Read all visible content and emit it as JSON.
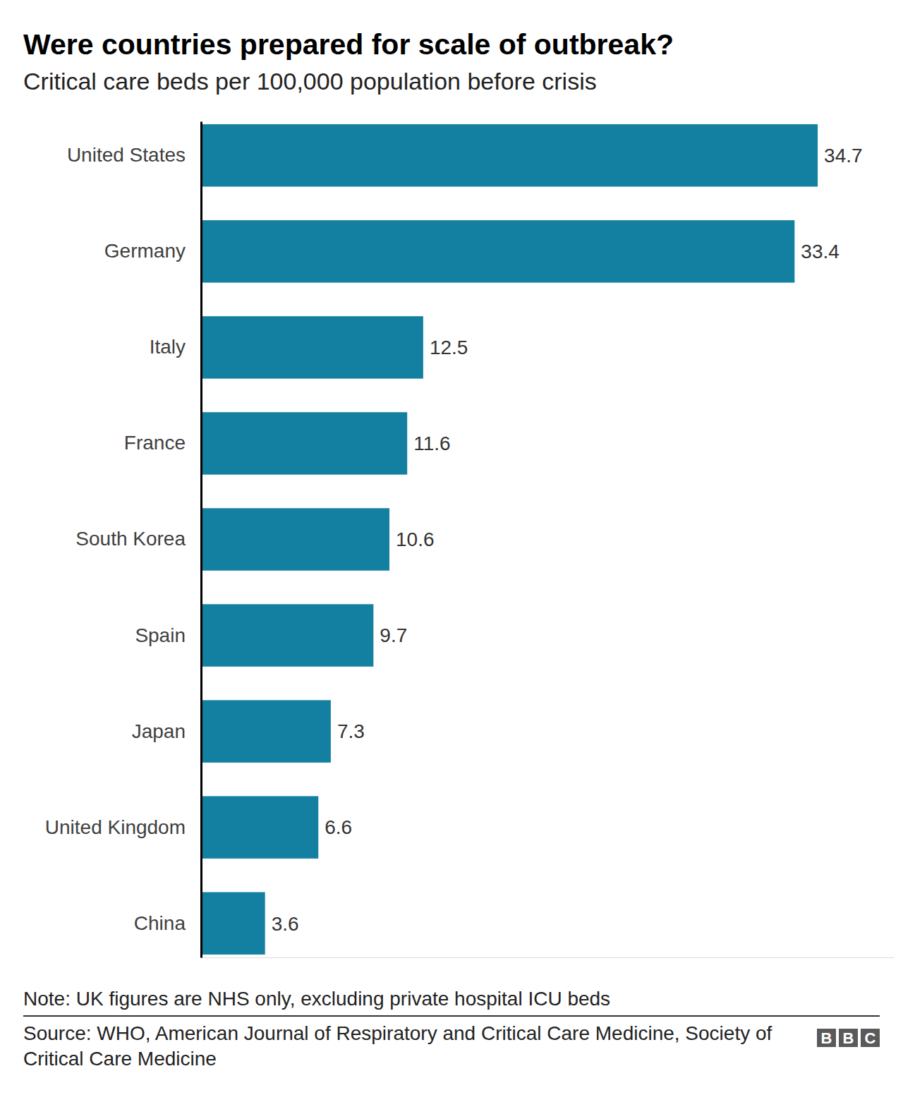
{
  "chart_data": {
    "type": "bar",
    "orientation": "horizontal",
    "title": "Were countries prepared for scale of outbreak?",
    "subtitle": "Critical care beds per 100,000 population before crisis",
    "categories": [
      "United States",
      "Germany",
      "Italy",
      "France",
      "South Korea",
      "Spain",
      "Japan",
      "United Kingdom",
      "China"
    ],
    "values": [
      34.7,
      33.4,
      12.5,
      11.6,
      10.6,
      9.7,
      7.3,
      6.6,
      3.6
    ],
    "color": "#1380a1",
    "xlim": [
      0,
      39
    ],
    "data_labels": true,
    "tick_labels": "y",
    "grid": false,
    "note": "Note: UK figures are NHS only, excluding private hospital ICU beds",
    "source": "Source: WHO, American Journal of Respiratory and Critical Care Medicine, Society of Critical Care Medicine",
    "logo": "BBC"
  }
}
